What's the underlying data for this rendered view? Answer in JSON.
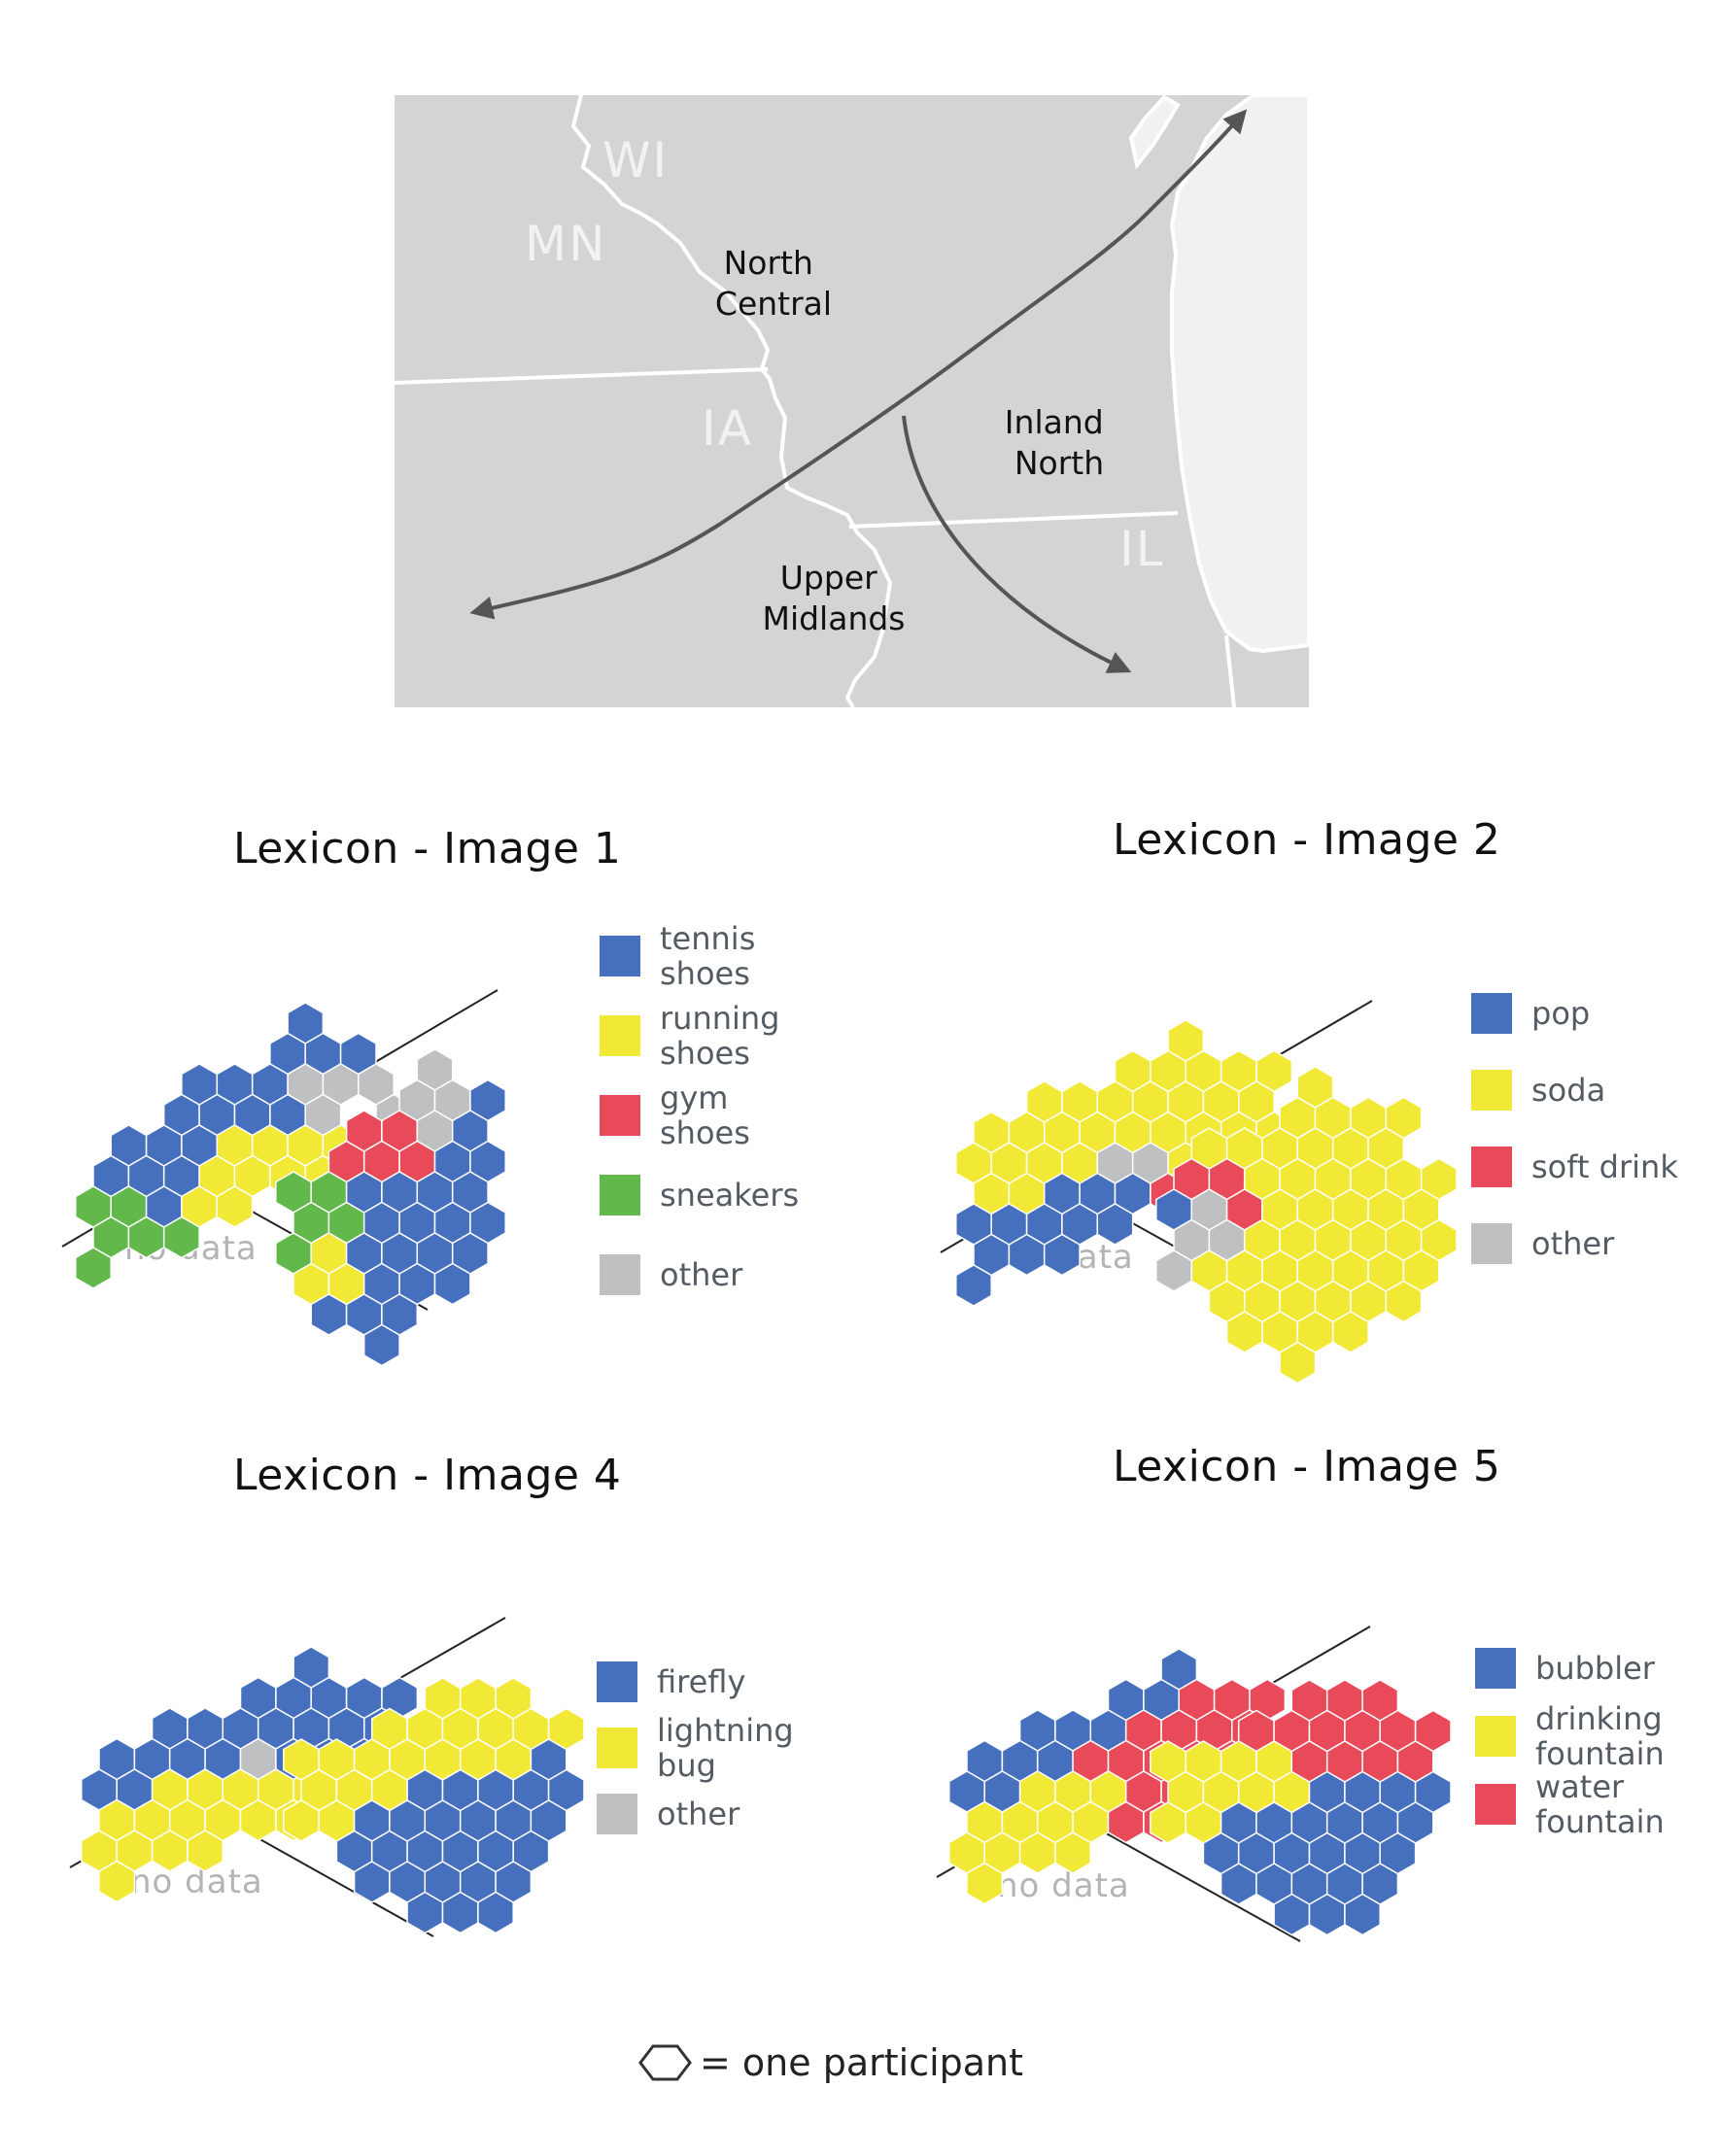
{
  "map": {
    "states": [
      "WI",
      "MN",
      "IA",
      "IL"
    ],
    "regions": [
      {
        "name": "North Central",
        "lines": [
          "North",
          "Central"
        ]
      },
      {
        "name": "Inland North",
        "lines": [
          "Inland",
          "North"
        ]
      },
      {
        "name": "Upper Midlands",
        "lines": [
          "Upper",
          "Midlands"
        ]
      }
    ]
  },
  "colors": {
    "blue": "#4670bd",
    "yellow": "#f2e936",
    "red": "#e84a5a",
    "green": "#62b84b",
    "gray": "#bfc0c2",
    "map_land": "#d4d4d4",
    "map_water": "#f0f1f3"
  },
  "chart_data": [
    {
      "type": "hexbin-composition",
      "title": "Lexicon - Image 1",
      "legend": [
        {
          "label_lines": [
            "tennis",
            "shoes"
          ],
          "color": "#4670bd"
        },
        {
          "label_lines": [
            "running",
            "shoes"
          ],
          "color": "#f2e936"
        },
        {
          "label_lines": [
            "gym",
            "shoes"
          ],
          "color": "#e84a5a"
        },
        {
          "label_lines": [
            "sneakers"
          ],
          "color": "#62b84b"
        },
        {
          "label_lines": [
            "other"
          ],
          "color": "#bfc0c2"
        }
      ],
      "no_data_label": "no data",
      "groups": [
        {
          "region": "North Central",
          "rows": [
            "......B..",
            ".....BBB.",
            "...BBBGGG",
            "..BBBBG.G",
            ".BBBYYYY.",
            "BBBYYYY..",
            "NNBYY....",
            "NNN......",
            "N........"
          ]
        },
        {
          "region": "Inland North",
          "rows": [
            "....G.",
            "...GGB",
            "..RRGB",
            ".RRRBB",
            "NNBBBB",
            "NNBBBB",
            "NYBBBB",
            "YYBBB.",
            ".BBB..",
            "..B..."
          ]
        }
      ]
    },
    {
      "type": "hexbin-composition",
      "title": "Lexicon - Image 2",
      "legend": [
        {
          "label_lines": [
            "pop"
          ],
          "color": "#4670bd"
        },
        {
          "label_lines": [
            "soda"
          ],
          "color": "#f2e936"
        },
        {
          "label_lines": [
            "soft drink"
          ],
          "color": "#e84a5a"
        },
        {
          "label_lines": [
            "other"
          ],
          "color": "#bfc0c2"
        }
      ],
      "no_data_label": "no data",
      "groups": [
        {
          "region": "North Central",
          "rows": [
            "......Y..",
            "....YYYYY",
            "..YYYYYYY",
            "YYYYYYYYY",
            "YYYYGGYY.",
            "YYBBBR...",
            "BBBBB....",
            "BBB......",
            "B........"
          ]
        },
        {
          "region": "Inland North",
          "rows": [
            "....Y...",
            "...YYYY.",
            ".YYYYYY.",
            "RRYYYYYY",
            "BGRYYYYY",
            "GGYYYYYY",
            "GYYYYYYY",
            ".YYYYYY.",
            "..YYYY..",
            "...Y...."
          ]
        }
      ]
    },
    {
      "type": "hexbin-composition",
      "title": "Lexicon - Image 4",
      "legend": [
        {
          "label_lines": [
            "firefly"
          ],
          "color": "#4670bd"
        },
        {
          "label_lines": [
            "lightning",
            "bug"
          ],
          "color": "#f2e936"
        },
        {
          "label_lines": [
            "other"
          ],
          "color": "#bfc0c2"
        }
      ],
      "no_data_label": "no data",
      "groups": [
        {
          "region": "North Central",
          "rows": [
            "......B..",
            "....BBBBB",
            "..BBBBBBB",
            "BBBBGBBBB",
            "BBYYYYY..",
            "YYYYYY...",
            "YYYY.....",
            "Y........"
          ]
        },
        {
          "region": "Inland North",
          "rows": [
            "....YYY",
            "..YYYYYY",
            "YYYYYYYB",
            "YYYBBBBB",
            "YYBBBBBB",
            ".BBBBBB.",
            "..BBBBB.",
            "...BBB.."
          ]
        }
      ]
    },
    {
      "type": "hexbin-composition",
      "title": "Lexicon - Image 5",
      "legend": [
        {
          "label_lines": [
            "bubbler"
          ],
          "color": "#4670bd"
        },
        {
          "label_lines": [
            "drinking",
            "fountain"
          ],
          "color": "#f2e936"
        },
        {
          "label_lines": [
            "water",
            "fountain"
          ],
          "color": "#e84a5a"
        }
      ],
      "no_data_label": "no data",
      "groups": [
        {
          "region": "North Central",
          "rows": [
            "......B..",
            "....BBRRR",
            "..BBBRRRR",
            "BBBRRRRRR",
            "BBYYYRRR.",
            "YYYYRR...",
            "YYYY.....",
            "Y........"
          ]
        },
        {
          "region": "Inland North",
          "rows": [
            "....RRR",
            "..RRRRRR",
            "YYYYRRRR",
            "YYYYBBBB",
            "YYBBBBBB",
            ".BBBBBB.",
            "..BBBBB.",
            "...BBB.."
          ]
        }
      ]
    }
  ],
  "footer": {
    "text": "= one participant",
    "icon": "hexagon-outline-icon"
  }
}
